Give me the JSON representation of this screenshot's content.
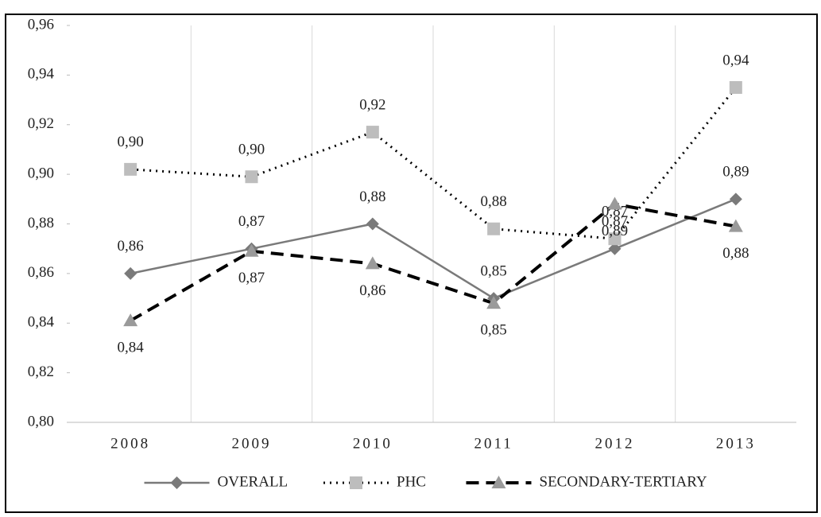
{
  "chart_data": {
    "type": "line",
    "categories": [
      "2008",
      "2009",
      "2010",
      "2011",
      "2012",
      "2013"
    ],
    "series": [
      {
        "name": "OVERALL",
        "color": "#7a7a7a",
        "marker": "diamond",
        "dash": "solid",
        "values": [
          0.86,
          0.87,
          0.88,
          0.85,
          0.87,
          0.89
        ],
        "value_labels": [
          "0,86",
          "0,87",
          "0,88",
          "0,85",
          "0,87",
          "0,89"
        ]
      },
      {
        "name": "PHC",
        "color": "#bdbdbd",
        "marker": "square",
        "dash": "dotted",
        "values": [
          0.902,
          0.899,
          0.917,
          0.878,
          0.874,
          0.935
        ],
        "value_labels": [
          "0,90",
          "0,90",
          "0,92",
          "0,88",
          "0,87",
          "0,94"
        ]
      },
      {
        "name": "SECONDARY-TERTIARY",
        "color": "#9a9a9a",
        "marker": "triangle",
        "dash": "dashed",
        "values": [
          0.841,
          0.869,
          0.864,
          0.848,
          0.888,
          0.879
        ],
        "value_labels": [
          "0,84",
          "0,87",
          "0,86",
          "0,85",
          "0,89",
          "0,88"
        ]
      }
    ],
    "ylim": [
      0.8,
      0.96
    ],
    "yticks": [
      {
        "value": 0.8,
        "label": "0,80"
      },
      {
        "value": 0.82,
        "label": "0,82"
      },
      {
        "value": 0.84,
        "label": "0,84"
      },
      {
        "value": 0.86,
        "label": "0,86"
      },
      {
        "value": 0.88,
        "label": "0,88"
      },
      {
        "value": 0.9,
        "label": "0,90"
      },
      {
        "value": 0.92,
        "label": "0,92"
      },
      {
        "value": 0.94,
        "label": "0,94"
      },
      {
        "value": 0.96,
        "label": "0,96"
      }
    ],
    "grid": "x",
    "legend": "bottom"
  }
}
